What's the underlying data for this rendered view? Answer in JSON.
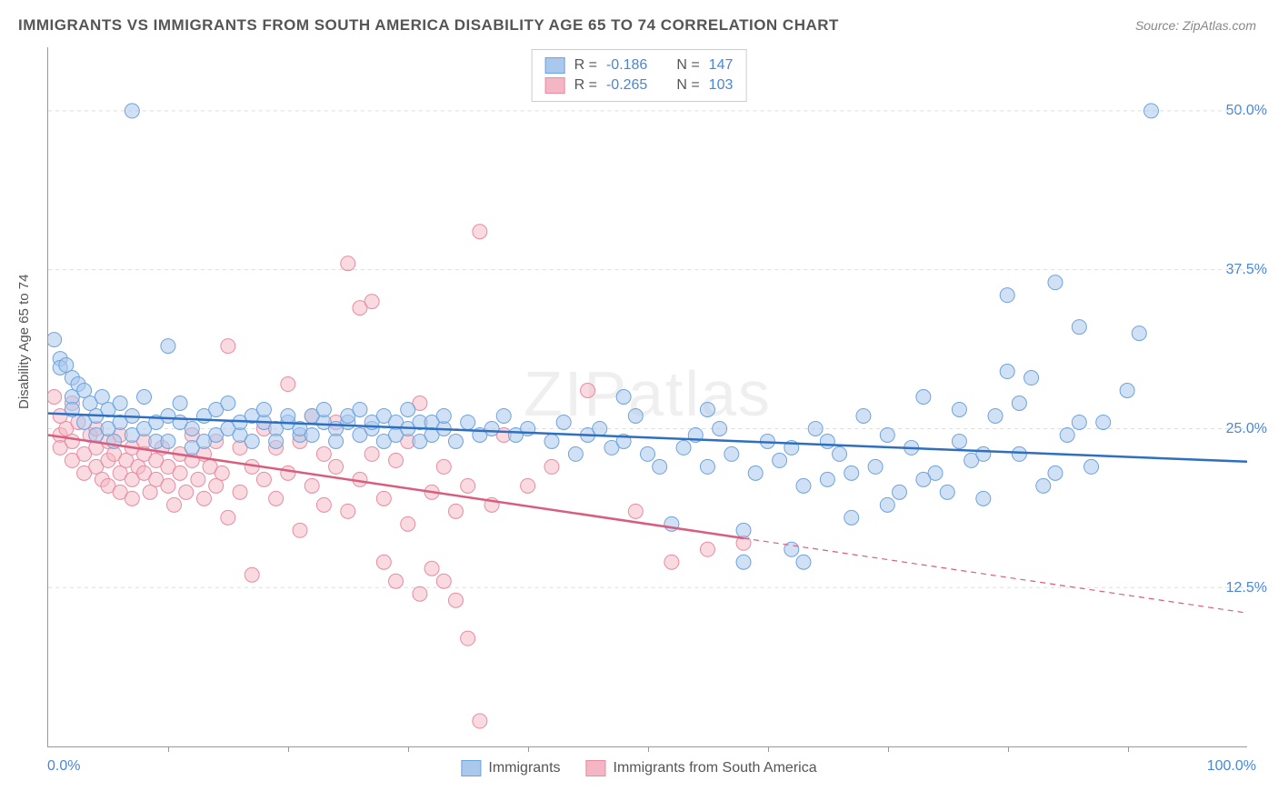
{
  "title": "IMMIGRANTS VS IMMIGRANTS FROM SOUTH AMERICA DISABILITY AGE 65 TO 74 CORRELATION CHART",
  "source": "Source: ZipAtlas.com",
  "watermark": "ZIPatlas",
  "ylabel": "Disability Age 65 to 74",
  "axes": {
    "xmin": 0,
    "xmax": 100,
    "ymin": 0,
    "ymax": 55,
    "x_tick_label_min": "0.0%",
    "x_tick_label_max": "100.0%",
    "y_ticks": [
      12.5,
      25.0,
      37.5,
      50.0
    ],
    "y_tick_labels": [
      "12.5%",
      "25.0%",
      "37.5%",
      "50.0%"
    ],
    "x_minor_ticks": [
      10,
      20,
      30,
      40,
      50,
      60,
      70,
      80,
      90
    ],
    "grid_color": "#dddddd",
    "axis_color": "#999999",
    "tick_label_color": "#4a86d8"
  },
  "series": [
    {
      "id": "immigrants",
      "label": "Immigrants",
      "R": "-0.186",
      "N": "147",
      "fill": "#a9c8ec",
      "stroke": "#6ea3dc",
      "fill_opacity": 0.55,
      "marker_radius": 8,
      "trend": {
        "x1": 0,
        "y1": 26.2,
        "x2": 100,
        "y2": 22.4,
        "solid_to_x": 100,
        "color": "#2e6fc1",
        "width": 2.5
      },
      "points": [
        [
          0.5,
          32.0
        ],
        [
          1,
          30.5
        ],
        [
          1,
          29.8
        ],
        [
          1.5,
          30.0
        ],
        [
          2,
          29.0
        ],
        [
          2,
          27.5
        ],
        [
          2,
          26.5
        ],
        [
          2.5,
          28.5
        ],
        [
          3,
          28.0
        ],
        [
          3,
          25.5
        ],
        [
          3.5,
          27.0
        ],
        [
          4,
          26.0
        ],
        [
          4,
          24.5
        ],
        [
          4.5,
          27.5
        ],
        [
          5,
          25.0
        ],
        [
          5,
          26.5
        ],
        [
          5.5,
          24.0
        ],
        [
          6,
          27.0
        ],
        [
          6,
          25.5
        ],
        [
          7,
          26.0
        ],
        [
          7,
          24.5
        ],
        [
          8,
          25.0
        ],
        [
          8,
          27.5
        ],
        [
          9,
          24.0
        ],
        [
          9,
          25.5
        ],
        [
          10,
          26.0
        ],
        [
          10,
          24.0
        ],
        [
          11,
          25.5
        ],
        [
          11,
          27.0
        ],
        [
          12,
          25.0
        ],
        [
          12,
          23.5
        ],
        [
          13,
          24.0
        ],
        [
          13,
          26.0
        ],
        [
          14,
          26.5
        ],
        [
          14,
          24.5
        ],
        [
          15,
          25.0
        ],
        [
          15,
          27.0
        ],
        [
          16,
          24.5
        ],
        [
          16,
          25.5
        ],
        [
          17,
          26.0
        ],
        [
          17,
          24.0
        ],
        [
          18,
          25.5
        ],
        [
          18,
          26.5
        ],
        [
          19,
          25.0
        ],
        [
          19,
          24.0
        ],
        [
          20,
          25.5
        ],
        [
          20,
          26.0
        ],
        [
          21,
          24.5
        ],
        [
          21,
          25.0
        ],
        [
          22,
          26.0
        ],
        [
          22,
          24.5
        ],
        [
          23,
          25.5
        ],
        [
          23,
          26.5
        ],
        [
          24,
          25.0
        ],
        [
          24,
          24.0
        ],
        [
          25,
          25.5
        ],
        [
          25,
          26.0
        ],
        [
          26,
          26.5
        ],
        [
          26,
          24.5
        ],
        [
          27,
          25.0
        ],
        [
          27,
          25.5
        ],
        [
          28,
          24.0
        ],
        [
          28,
          26.0
        ],
        [
          29,
          25.5
        ],
        [
          29,
          24.5
        ],
        [
          30,
          26.5
        ],
        [
          30,
          25.0
        ],
        [
          31,
          24.0
        ],
        [
          31,
          25.5
        ],
        [
          32,
          25.5
        ],
        [
          32,
          24.5
        ],
        [
          33,
          25.0
        ],
        [
          33,
          26.0
        ],
        [
          34,
          24.0
        ],
        [
          35,
          25.5
        ],
        [
          36,
          24.5
        ],
        [
          37,
          25.0
        ],
        [
          38,
          26.0
        ],
        [
          39,
          24.5
        ],
        [
          40,
          25.0
        ],
        [
          42,
          24.0
        ],
        [
          43,
          25.5
        ],
        [
          44,
          23.0
        ],
        [
          45,
          24.5
        ],
        [
          46,
          25.0
        ],
        [
          47,
          23.5
        ],
        [
          48,
          24.0
        ],
        [
          49,
          26.0
        ],
        [
          50,
          23.0
        ],
        [
          51,
          22.0
        ],
        [
          52,
          17.5
        ],
        [
          53,
          23.5
        ],
        [
          54,
          24.5
        ],
        [
          55,
          22.0
        ],
        [
          56,
          25.0
        ],
        [
          57,
          23.0
        ],
        [
          58,
          17.0
        ],
        [
          59,
          21.5
        ],
        [
          60,
          24.0
        ],
        [
          61,
          22.5
        ],
        [
          62,
          15.5
        ],
        [
          62,
          23.5
        ],
        [
          63,
          20.5
        ],
        [
          64,
          25.0
        ],
        [
          65,
          21.0
        ],
        [
          66,
          23.0
        ],
        [
          67,
          18.0
        ],
        [
          68,
          26.0
        ],
        [
          69,
          22.0
        ],
        [
          70,
          24.5
        ],
        [
          71,
          20.0
        ],
        [
          72,
          23.5
        ],
        [
          73,
          27.5
        ],
        [
          74,
          21.5
        ],
        [
          75,
          20.0
        ],
        [
          76,
          24.0
        ],
        [
          77,
          22.5
        ],
        [
          78,
          19.5
        ],
        [
          79,
          26.0
        ],
        [
          80,
          29.5
        ],
        [
          80,
          35.5
        ],
        [
          81,
          23.0
        ],
        [
          82,
          29.0
        ],
        [
          83,
          20.5
        ],
        [
          84,
          36.5
        ],
        [
          85,
          24.5
        ],
        [
          86,
          33.0
        ],
        [
          87,
          22.0
        ],
        [
          88,
          25.5
        ],
        [
          90,
          28.0
        ],
        [
          91,
          32.5
        ],
        [
          92,
          50.0
        ],
        [
          7,
          50.0
        ],
        [
          10,
          31.5
        ],
        [
          48,
          27.5
        ],
        [
          55,
          26.5
        ],
        [
          58,
          14.5
        ],
        [
          63,
          14.5
        ],
        [
          65,
          24.0
        ],
        [
          67,
          21.5
        ],
        [
          70,
          19.0
        ],
        [
          73,
          21.0
        ],
        [
          76,
          26.5
        ],
        [
          78,
          23.0
        ],
        [
          81,
          27.0
        ],
        [
          84,
          21.5
        ],
        [
          86,
          25.5
        ]
      ]
    },
    {
      "id": "south_america",
      "label": "Immigrants from South America",
      "R": "-0.265",
      "N": "103",
      "fill": "#f4b6c4",
      "stroke": "#e88ca2",
      "fill_opacity": 0.5,
      "marker_radius": 8,
      "trend": {
        "x1": 0,
        "y1": 24.5,
        "x2": 100,
        "y2": 10.5,
        "solid_to_x": 58,
        "color": "#d95d7f",
        "width": 2.5
      },
      "points": [
        [
          0.5,
          27.5
        ],
        [
          1,
          26.0
        ],
        [
          1,
          24.5
        ],
        [
          1,
          23.5
        ],
        [
          1.5,
          25.0
        ],
        [
          2,
          24.0
        ],
        [
          2,
          27.0
        ],
        [
          2,
          22.5
        ],
        [
          2.5,
          25.5
        ],
        [
          3,
          23.0
        ],
        [
          3,
          21.5
        ],
        [
          3.5,
          24.5
        ],
        [
          4,
          22.0
        ],
        [
          4,
          25.0
        ],
        [
          4,
          23.5
        ],
        [
          4.5,
          21.0
        ],
        [
          5,
          24.0
        ],
        [
          5,
          22.5
        ],
        [
          5,
          20.5
        ],
        [
          5.5,
          23.0
        ],
        [
          6,
          21.5
        ],
        [
          6,
          24.5
        ],
        [
          6,
          20.0
        ],
        [
          6.5,
          22.5
        ],
        [
          7,
          23.5
        ],
        [
          7,
          21.0
        ],
        [
          7,
          19.5
        ],
        [
          7.5,
          22.0
        ],
        [
          8,
          24.0
        ],
        [
          8,
          21.5
        ],
        [
          8,
          23.0
        ],
        [
          8.5,
          20.0
        ],
        [
          9,
          22.5
        ],
        [
          9,
          21.0
        ],
        [
          9.5,
          23.5
        ],
        [
          10,
          20.5
        ],
        [
          10,
          22.0
        ],
        [
          10.5,
          19.0
        ],
        [
          11,
          21.5
        ],
        [
          11,
          23.0
        ],
        [
          11.5,
          20.0
        ],
        [
          12,
          22.5
        ],
        [
          12,
          24.5
        ],
        [
          12.5,
          21.0
        ],
        [
          13,
          19.5
        ],
        [
          13,
          23.0
        ],
        [
          13.5,
          22.0
        ],
        [
          14,
          20.5
        ],
        [
          14,
          24.0
        ],
        [
          14.5,
          21.5
        ],
        [
          15,
          18.0
        ],
        [
          15,
          31.5
        ],
        [
          16,
          23.5
        ],
        [
          16,
          20.0
        ],
        [
          17,
          22.0
        ],
        [
          17,
          13.5
        ],
        [
          18,
          25.0
        ],
        [
          18,
          21.0
        ],
        [
          19,
          19.5
        ],
        [
          19,
          23.5
        ],
        [
          20,
          28.5
        ],
        [
          20,
          21.5
        ],
        [
          21,
          24.0
        ],
        [
          21,
          17.0
        ],
        [
          22,
          20.5
        ],
        [
          22,
          26.0
        ],
        [
          23,
          19.0
        ],
        [
          23,
          23.0
        ],
        [
          24,
          22.0
        ],
        [
          24,
          25.5
        ],
        [
          25,
          18.5
        ],
        [
          25,
          38.0
        ],
        [
          26,
          34.5
        ],
        [
          26,
          21.0
        ],
        [
          27,
          35.0
        ],
        [
          27,
          23.0
        ],
        [
          28,
          14.5
        ],
        [
          28,
          19.5
        ],
        [
          29,
          22.5
        ],
        [
          29,
          13.0
        ],
        [
          30,
          17.5
        ],
        [
          30,
          24.0
        ],
        [
          31,
          27.0
        ],
        [
          31,
          12.0
        ],
        [
          32,
          20.0
        ],
        [
          32,
          14.0
        ],
        [
          33,
          13.0
        ],
        [
          33,
          22.0
        ],
        [
          34,
          11.5
        ],
        [
          34,
          18.5
        ],
        [
          35,
          8.5
        ],
        [
          35,
          20.5
        ],
        [
          36,
          40.5
        ],
        [
          37,
          19.0
        ],
        [
          38,
          24.5
        ],
        [
          40,
          20.5
        ],
        [
          42,
          22.0
        ],
        [
          45,
          28.0
        ],
        [
          49,
          18.5
        ],
        [
          52,
          14.5
        ],
        [
          55,
          15.5
        ],
        [
          58,
          16.0
        ],
        [
          36,
          2.0
        ]
      ]
    }
  ],
  "legend_top": {
    "R_label": "R =",
    "N_label": "N ="
  },
  "legend_bottom": {},
  "colors": {
    "title": "#555555",
    "source": "#888888",
    "watermark": "rgba(120,120,120,0.12)"
  }
}
